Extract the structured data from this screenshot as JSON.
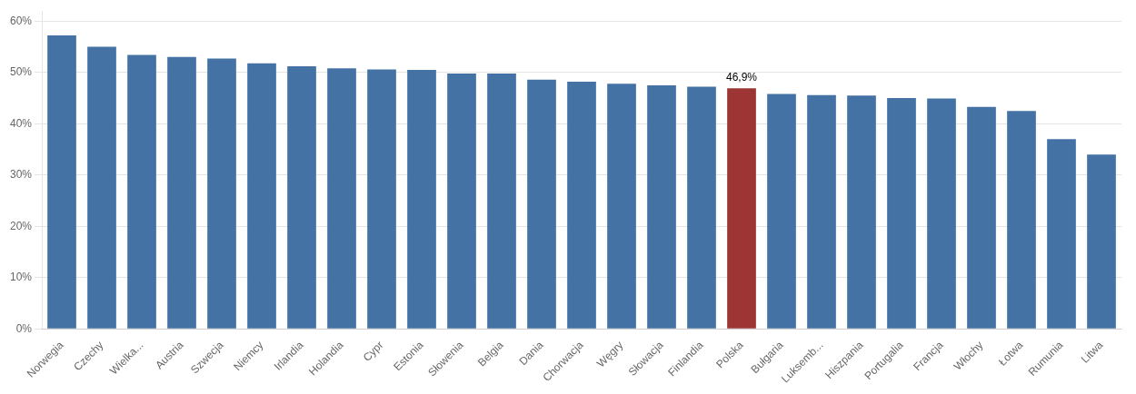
{
  "chart_data": {
    "type": "bar",
    "categories": [
      "Norwegia",
      "Czechy",
      "Wielka...",
      "Austria",
      "Szwecja",
      "Niemcy",
      "Irlandia",
      "Holandia",
      "Cypr",
      "Estonia",
      "Słowenia",
      "Belgia",
      "Dania",
      "Chorwacja",
      "Węgry",
      "Słowacja",
      "Finlandia",
      "Polska",
      "Bułgaria",
      "Luksemb...",
      "Hiszpania",
      "Portugalia",
      "Francja",
      "Włochy",
      "Łotwa",
      "Rumunia",
      "Litwa"
    ],
    "values": [
      57.2,
      55.0,
      53.4,
      53.0,
      52.7,
      51.8,
      51.2,
      50.8,
      50.6,
      50.5,
      49.8,
      49.8,
      48.6,
      48.2,
      47.8,
      47.5,
      47.2,
      46.9,
      45.8,
      45.6,
      45.5,
      45.0,
      44.9,
      43.3,
      42.5,
      37.0,
      34.0
    ],
    "colors": [
      "#4472a4",
      "#4472a4",
      "#4472a4",
      "#4472a4",
      "#4472a4",
      "#4472a4",
      "#4472a4",
      "#4472a4",
      "#4472a4",
      "#4472a4",
      "#4472a4",
      "#4472a4",
      "#4472a4",
      "#4472a4",
      "#4472a4",
      "#4472a4",
      "#4472a4",
      "#9d3535",
      "#4472a4",
      "#4472a4",
      "#4472a4",
      "#4472a4",
      "#4472a4",
      "#4472a4",
      "#4472a4",
      "#4472a4",
      "#4472a4"
    ],
    "annotations": [
      {
        "text": "46,9%",
        "category": "Polska",
        "value": 46.9
      }
    ],
    "ylim": [
      0,
      62
    ],
    "yticks": [
      {
        "value": 0,
        "label": "0%"
      },
      {
        "value": 10,
        "label": "10%"
      },
      {
        "value": 20,
        "label": "20%"
      },
      {
        "value": 30,
        "label": "30%"
      },
      {
        "value": 40,
        "label": "40%"
      },
      {
        "value": 50,
        "label": "50%"
      },
      {
        "value": 60,
        "label": "60%"
      }
    ],
    "grid": true
  }
}
